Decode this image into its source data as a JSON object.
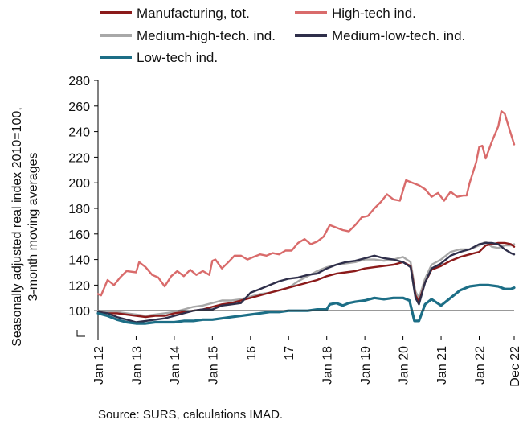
{
  "chart_data": {
    "type": "line",
    "title": "",
    "ylabel_line1": "Seasonally adjusted real index 2010=100,",
    "ylabel_line2": "3-month moving averages",
    "xlabel": "",
    "ylim": [
      80,
      280
    ],
    "yticks": [
      100,
      120,
      140,
      160,
      180,
      200,
      220,
      240,
      260,
      280
    ],
    "xlim": [
      2012.0,
      2022.917
    ],
    "xticks": [
      {
        "label": "Jan 12",
        "x": 2012.0
      },
      {
        "label": "Jan 13",
        "x": 2013.0
      },
      {
        "label": "Jan 14",
        "x": 2014.0
      },
      {
        "label": "Jan 15",
        "x": 2015.0
      },
      {
        "label": "16",
        "x": 2016.0
      },
      {
        "label": "17",
        "x": 2017.0
      },
      {
        "label": "Jan 18",
        "x": 2018.0
      },
      {
        "label": "Jan 19",
        "x": 2019.0
      },
      {
        "label": "Jan 20",
        "x": 2020.0
      },
      {
        "label": "Jan 21",
        "x": 2021.0
      },
      {
        "label": "Jan 22",
        "x": 2022.0
      },
      {
        "label": "Dec 22",
        "x": 2022.917
      }
    ],
    "reference_line": 100,
    "legend_position": "top",
    "series": [
      {
        "name": "Manufacturing, tot.",
        "color": "#8b1a1a",
        "points": [
          [
            2012.0,
            99
          ],
          [
            2012.25,
            98
          ],
          [
            2012.5,
            98
          ],
          [
            2012.75,
            97
          ],
          [
            2013.0,
            96
          ],
          [
            2013.25,
            95
          ],
          [
            2013.5,
            96
          ],
          [
            2013.75,
            96
          ],
          [
            2014.0,
            98
          ],
          [
            2014.25,
            99
          ],
          [
            2014.5,
            100
          ],
          [
            2014.75,
            101
          ],
          [
            2015.0,
            103
          ],
          [
            2015.25,
            105
          ],
          [
            2015.5,
            106
          ],
          [
            2015.75,
            108
          ],
          [
            2016.0,
            110
          ],
          [
            2016.25,
            112
          ],
          [
            2016.5,
            114
          ],
          [
            2016.75,
            116
          ],
          [
            2017.0,
            118
          ],
          [
            2017.25,
            120
          ],
          [
            2017.5,
            122
          ],
          [
            2017.75,
            124
          ],
          [
            2018.0,
            127
          ],
          [
            2018.25,
            129
          ],
          [
            2018.5,
            130
          ],
          [
            2018.75,
            131
          ],
          [
            2019.0,
            133
          ],
          [
            2019.25,
            134
          ],
          [
            2019.5,
            135
          ],
          [
            2019.75,
            136
          ],
          [
            2020.0,
            138
          ],
          [
            2020.2,
            135
          ],
          [
            2020.33,
            112
          ],
          [
            2020.42,
            107
          ],
          [
            2020.58,
            122
          ],
          [
            2020.75,
            132
          ],
          [
            2021.0,
            135
          ],
          [
            2021.25,
            139
          ],
          [
            2021.5,
            142
          ],
          [
            2021.75,
            144
          ],
          [
            2022.0,
            146
          ],
          [
            2022.17,
            151
          ],
          [
            2022.33,
            152
          ],
          [
            2022.5,
            153
          ],
          [
            2022.67,
            153
          ],
          [
            2022.83,
            152
          ],
          [
            2022.917,
            150
          ]
        ]
      },
      {
        "name": "High-tech ind.",
        "color": "#d96b6b",
        "points": [
          [
            2012.0,
            113
          ],
          [
            2012.08,
            112
          ],
          [
            2012.25,
            124
          ],
          [
            2012.42,
            120
          ],
          [
            2012.58,
            126
          ],
          [
            2012.75,
            131
          ],
          [
            2013.0,
            130
          ],
          [
            2013.08,
            138
          ],
          [
            2013.25,
            134
          ],
          [
            2013.42,
            128
          ],
          [
            2013.58,
            126
          ],
          [
            2013.75,
            119
          ],
          [
            2013.92,
            127
          ],
          [
            2014.08,
            131
          ],
          [
            2014.25,
            127
          ],
          [
            2014.42,
            132
          ],
          [
            2014.58,
            128
          ],
          [
            2014.75,
            131
          ],
          [
            2014.92,
            128
          ],
          [
            2015.0,
            139
          ],
          [
            2015.08,
            140
          ],
          [
            2015.25,
            133
          ],
          [
            2015.42,
            138
          ],
          [
            2015.58,
            143
          ],
          [
            2015.75,
            143
          ],
          [
            2015.92,
            140
          ],
          [
            2016.08,
            142
          ],
          [
            2016.25,
            144
          ],
          [
            2016.42,
            143
          ],
          [
            2016.58,
            145
          ],
          [
            2016.75,
            144
          ],
          [
            2016.92,
            147
          ],
          [
            2017.08,
            147
          ],
          [
            2017.25,
            153
          ],
          [
            2017.42,
            156
          ],
          [
            2017.58,
            152
          ],
          [
            2017.75,
            154
          ],
          [
            2017.92,
            158
          ],
          [
            2018.08,
            167
          ],
          [
            2018.25,
            165
          ],
          [
            2018.42,
            163
          ],
          [
            2018.58,
            162
          ],
          [
            2018.75,
            167
          ],
          [
            2018.92,
            173
          ],
          [
            2019.08,
            174
          ],
          [
            2019.25,
            180
          ],
          [
            2019.42,
            185
          ],
          [
            2019.58,
            191
          ],
          [
            2019.75,
            187
          ],
          [
            2019.92,
            186
          ],
          [
            2020.08,
            202
          ],
          [
            2020.25,
            200
          ],
          [
            2020.42,
            198
          ],
          [
            2020.58,
            195
          ],
          [
            2020.75,
            189
          ],
          [
            2020.92,
            192
          ],
          [
            2021.08,
            186
          ],
          [
            2021.25,
            193
          ],
          [
            2021.42,
            189
          ],
          [
            2021.58,
            190
          ],
          [
            2021.67,
            190
          ],
          [
            2021.75,
            200
          ],
          [
            2021.92,
            216
          ],
          [
            2022.0,
            228
          ],
          [
            2022.08,
            229
          ],
          [
            2022.17,
            219
          ],
          [
            2022.33,
            232
          ],
          [
            2022.5,
            244
          ],
          [
            2022.58,
            256
          ],
          [
            2022.67,
            254
          ],
          [
            2022.75,
            246
          ],
          [
            2022.917,
            230
          ]
        ]
      },
      {
        "name": "Medium-high-tech. ind.",
        "color": "#a8a8a8",
        "points": [
          [
            2012.0,
            100
          ],
          [
            2012.25,
            99
          ],
          [
            2012.5,
            99
          ],
          [
            2012.75,
            98
          ],
          [
            2013.0,
            97
          ],
          [
            2013.25,
            96
          ],
          [
            2013.5,
            97
          ],
          [
            2013.75,
            98
          ],
          [
            2014.0,
            99
          ],
          [
            2014.25,
            101
          ],
          [
            2014.5,
            103
          ],
          [
            2014.75,
            104
          ],
          [
            2015.0,
            106
          ],
          [
            2015.25,
            108
          ],
          [
            2015.5,
            108
          ],
          [
            2015.75,
            109
          ],
          [
            2016.0,
            111
          ],
          [
            2016.25,
            113
          ],
          [
            2016.5,
            114
          ],
          [
            2016.75,
            116
          ],
          [
            2017.0,
            118
          ],
          [
            2017.25,
            123
          ],
          [
            2017.5,
            127
          ],
          [
            2017.75,
            131
          ],
          [
            2018.0,
            134
          ],
          [
            2018.25,
            136
          ],
          [
            2018.5,
            137
          ],
          [
            2018.75,
            138
          ],
          [
            2019.0,
            140
          ],
          [
            2019.25,
            140
          ],
          [
            2019.5,
            139
          ],
          [
            2019.75,
            140
          ],
          [
            2020.0,
            142
          ],
          [
            2020.2,
            138
          ],
          [
            2020.33,
            115
          ],
          [
            2020.42,
            110
          ],
          [
            2020.58,
            125
          ],
          [
            2020.75,
            136
          ],
          [
            2021.0,
            140
          ],
          [
            2021.25,
            146
          ],
          [
            2021.5,
            148
          ],
          [
            2021.75,
            148
          ],
          [
            2022.0,
            151
          ],
          [
            2022.17,
            154
          ],
          [
            2022.33,
            150
          ],
          [
            2022.5,
            149
          ],
          [
            2022.67,
            151
          ],
          [
            2022.83,
            151
          ],
          [
            2022.917,
            152
          ]
        ]
      },
      {
        "name": "Medium-low-tech. ind.",
        "color": "#2f2f4a",
        "points": [
          [
            2012.0,
            99
          ],
          [
            2012.25,
            98
          ],
          [
            2012.5,
            95
          ],
          [
            2012.75,
            93
          ],
          [
            2013.0,
            91
          ],
          [
            2013.25,
            92
          ],
          [
            2013.5,
            93
          ],
          [
            2013.75,
            94
          ],
          [
            2014.0,
            96
          ],
          [
            2014.25,
            98
          ],
          [
            2014.5,
            100
          ],
          [
            2014.75,
            101
          ],
          [
            2015.0,
            101
          ],
          [
            2015.25,
            104
          ],
          [
            2015.5,
            105
          ],
          [
            2015.75,
            106
          ],
          [
            2016.0,
            114
          ],
          [
            2016.25,
            117
          ],
          [
            2016.5,
            120
          ],
          [
            2016.75,
            123
          ],
          [
            2017.0,
            125
          ],
          [
            2017.25,
            126
          ],
          [
            2017.5,
            128
          ],
          [
            2017.75,
            129
          ],
          [
            2018.0,
            133
          ],
          [
            2018.25,
            136
          ],
          [
            2018.5,
            138
          ],
          [
            2018.75,
            139
          ],
          [
            2019.0,
            141
          ],
          [
            2019.25,
            143
          ],
          [
            2019.5,
            141
          ],
          [
            2019.75,
            140
          ],
          [
            2020.0,
            138
          ],
          [
            2020.2,
            134
          ],
          [
            2020.33,
            110
          ],
          [
            2020.42,
            105
          ],
          [
            2020.58,
            122
          ],
          [
            2020.75,
            133
          ],
          [
            2021.0,
            137
          ],
          [
            2021.25,
            143
          ],
          [
            2021.5,
            146
          ],
          [
            2021.75,
            148
          ],
          [
            2022.0,
            152
          ],
          [
            2022.17,
            153
          ],
          [
            2022.33,
            153
          ],
          [
            2022.5,
            152
          ],
          [
            2022.67,
            148
          ],
          [
            2022.83,
            145
          ],
          [
            2022.917,
            144
          ]
        ]
      },
      {
        "name": "Low-tech ind.",
        "color": "#1c6e86",
        "points": [
          [
            2012.0,
            98
          ],
          [
            2012.25,
            96
          ],
          [
            2012.5,
            93
          ],
          [
            2012.75,
            91
          ],
          [
            2013.0,
            90
          ],
          [
            2013.25,
            90
          ],
          [
            2013.5,
            91
          ],
          [
            2013.75,
            91
          ],
          [
            2014.0,
            91
          ],
          [
            2014.25,
            92
          ],
          [
            2014.5,
            92
          ],
          [
            2014.75,
            93
          ],
          [
            2015.0,
            93
          ],
          [
            2015.25,
            94
          ],
          [
            2015.5,
            95
          ],
          [
            2015.75,
            96
          ],
          [
            2016.0,
            97
          ],
          [
            2016.25,
            98
          ],
          [
            2016.5,
            99
          ],
          [
            2016.75,
            99
          ],
          [
            2017.0,
            100
          ],
          [
            2017.25,
            100
          ],
          [
            2017.5,
            100
          ],
          [
            2017.75,
            101
          ],
          [
            2018.0,
            101
          ],
          [
            2018.08,
            105
          ],
          [
            2018.25,
            106
          ],
          [
            2018.42,
            104
          ],
          [
            2018.58,
            106
          ],
          [
            2018.75,
            107
          ],
          [
            2019.0,
            108
          ],
          [
            2019.25,
            110
          ],
          [
            2019.5,
            109
          ],
          [
            2019.75,
            110
          ],
          [
            2020.0,
            110
          ],
          [
            2020.17,
            108
          ],
          [
            2020.3,
            92
          ],
          [
            2020.42,
            92
          ],
          [
            2020.58,
            105
          ],
          [
            2020.75,
            109
          ],
          [
            2021.0,
            104
          ],
          [
            2021.25,
            110
          ],
          [
            2021.5,
            116
          ],
          [
            2021.75,
            119
          ],
          [
            2022.0,
            120
          ],
          [
            2022.25,
            120
          ],
          [
            2022.5,
            119
          ],
          [
            2022.67,
            117
          ],
          [
            2022.83,
            117
          ],
          [
            2022.917,
            118
          ]
        ]
      }
    ]
  },
  "source_note": "Source: SURS, calculations IMAD."
}
